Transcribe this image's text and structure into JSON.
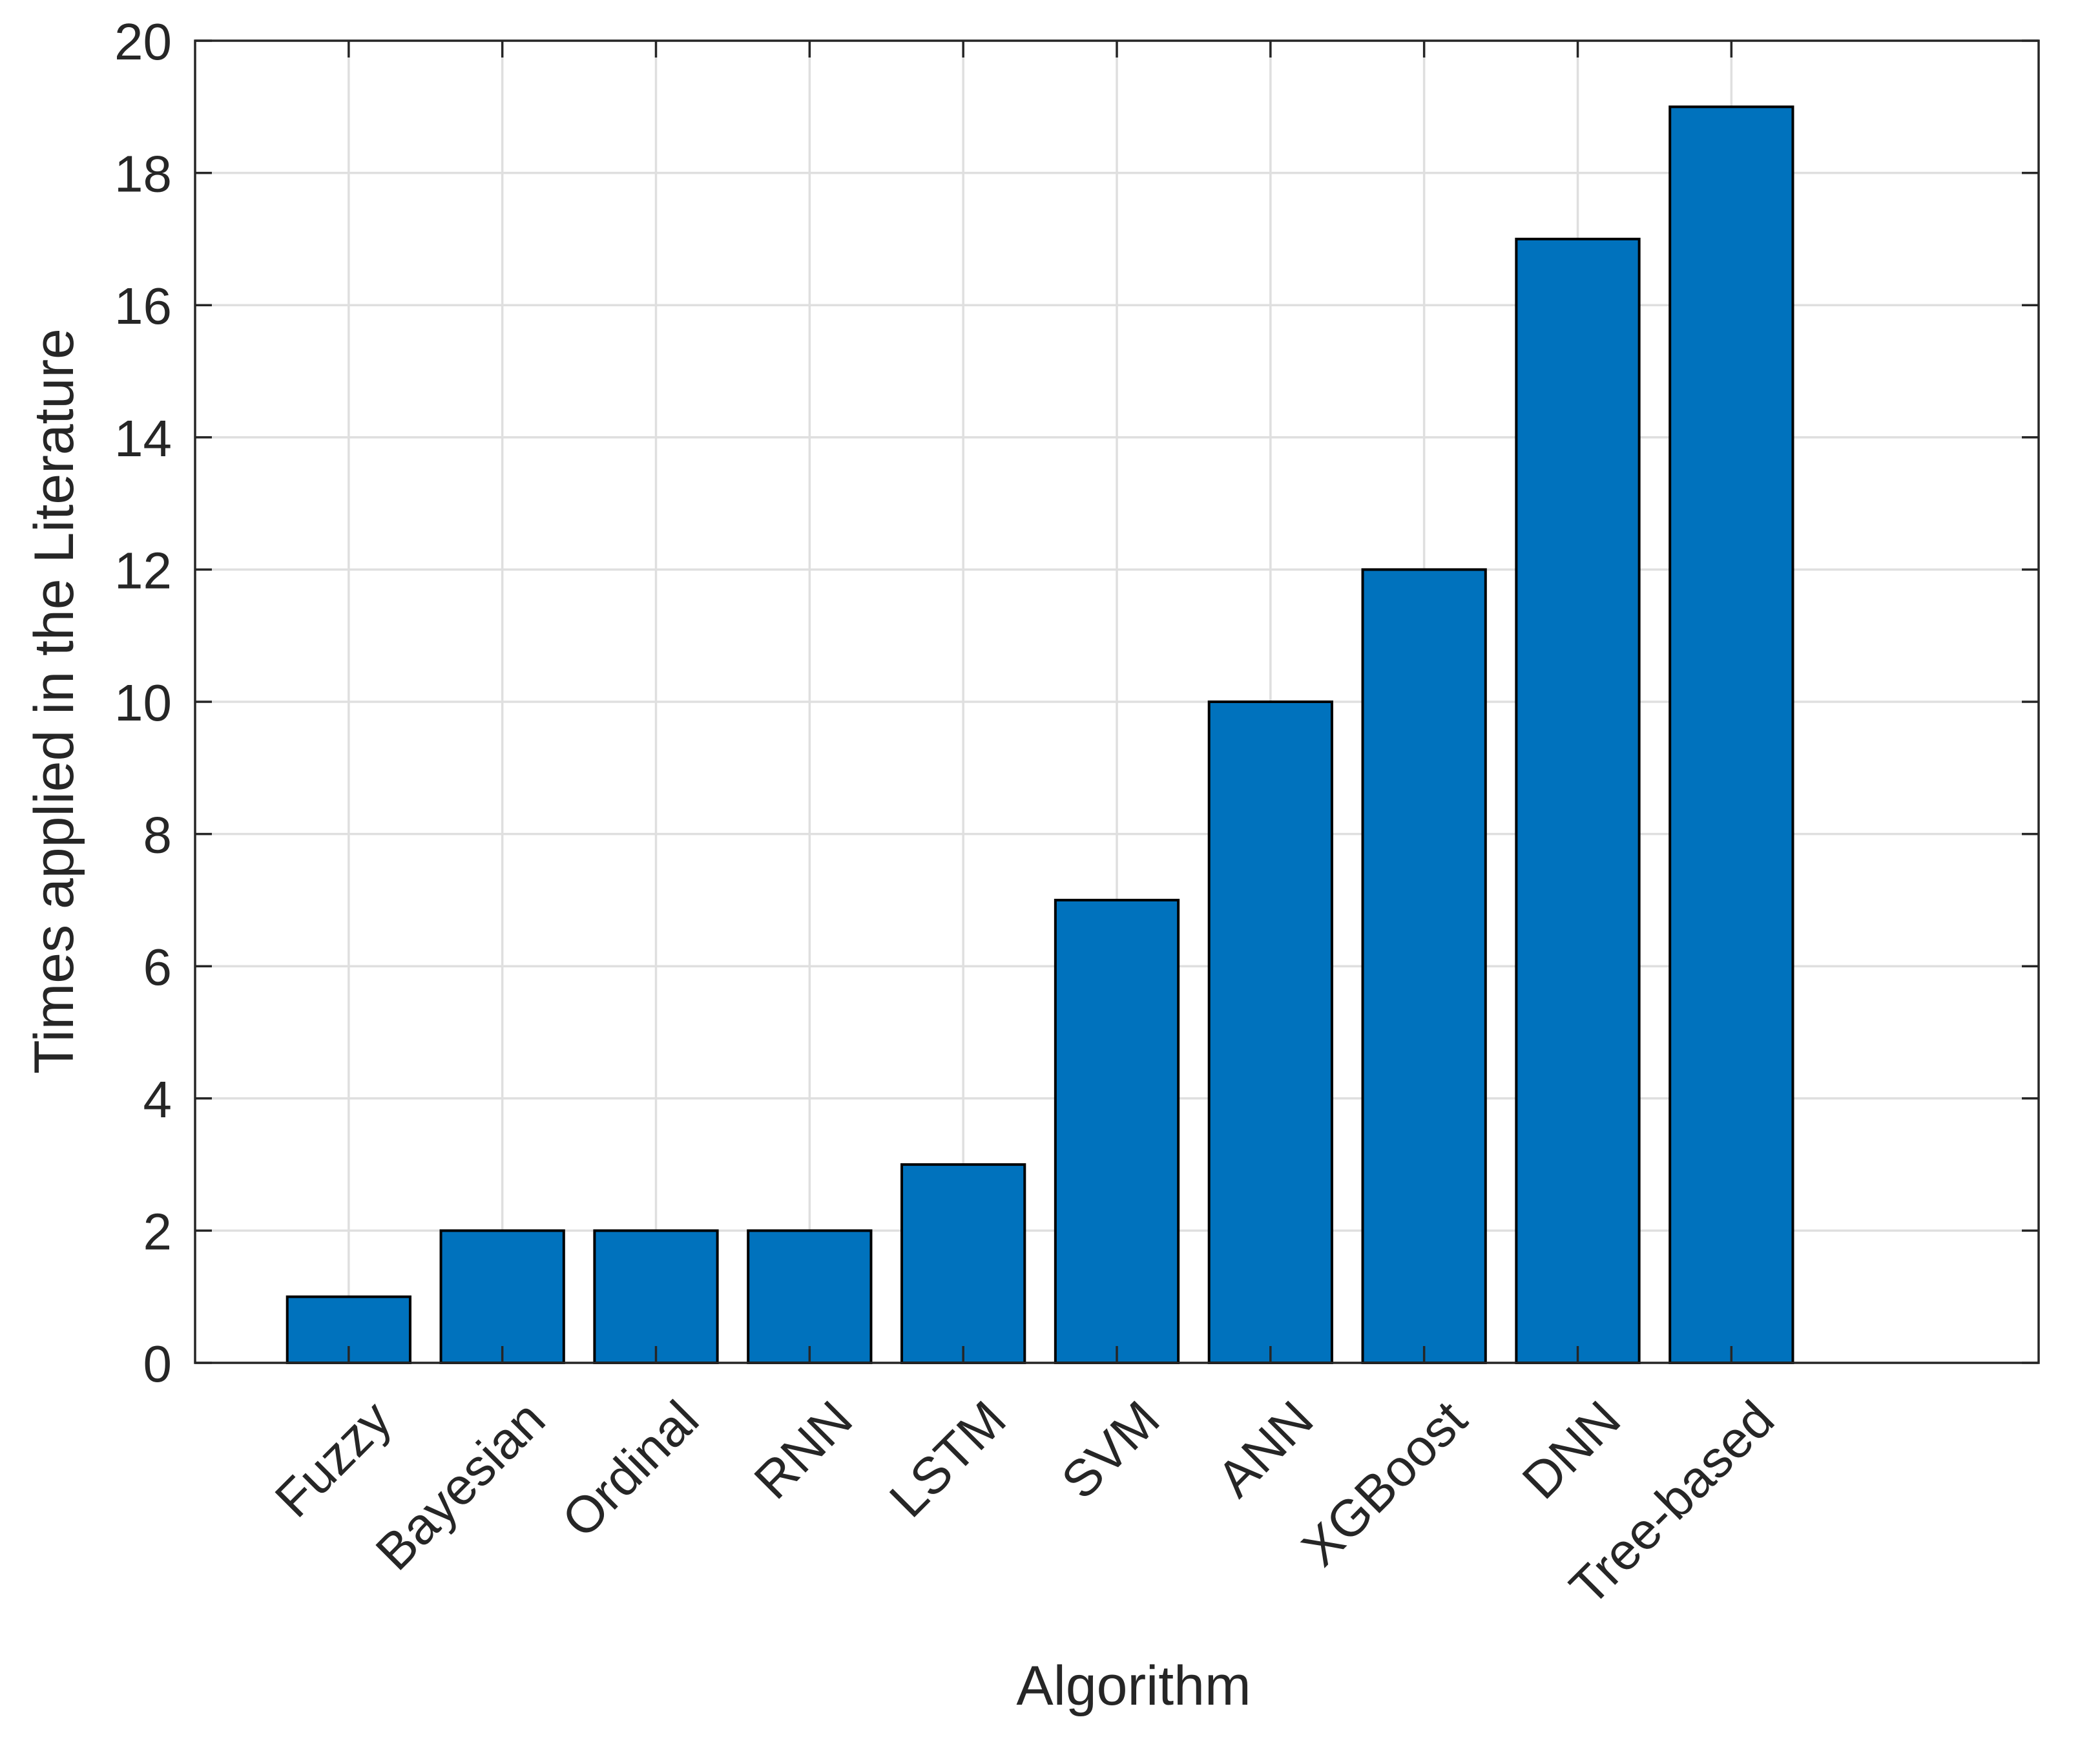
{
  "chart_data": {
    "type": "bar",
    "categories": [
      "Fuzzy",
      "Bayesian",
      "Ordinal",
      "RNN",
      "LSTM",
      "SVM",
      "ANN",
      "XGBoost",
      "DNN",
      "Tree-based"
    ],
    "values": [
      1,
      2,
      2,
      2,
      3,
      7,
      10,
      12,
      17,
      19
    ],
    "xlabel": "Algorithm",
    "ylabel": "Times applied in the Literature",
    "ylim": [
      0,
      20
    ],
    "yticks": [
      0,
      2,
      4,
      6,
      8,
      10,
      12,
      14,
      16,
      18,
      20
    ],
    "grid": true,
    "bar_color": "#0072BD",
    "edge_color": "#000000"
  }
}
